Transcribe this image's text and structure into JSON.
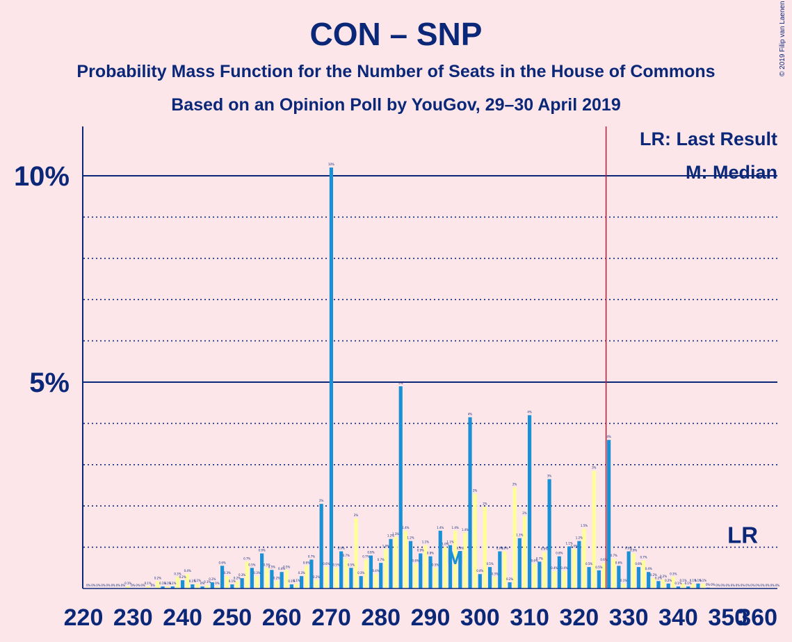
{
  "title": "CON – SNP",
  "subtitle": "Probability Mass Function for the Number of Seats in the House of Commons",
  "subtitle2": "Based on an Opinion Poll by YouGov, 29–30 April 2019",
  "copyright": "© 2019 Filip van Laenen",
  "legend": {
    "last_result": "LR: Last Result",
    "median": "M: Median",
    "lr_label": "LR",
    "median_marker": "M"
  },
  "colors": {
    "background": "#FDE6EA",
    "blue_bar": "#1A90D5",
    "yellow_bar": "#FFFF99",
    "text": "#0B2878",
    "last_result_line": "#C0182F"
  },
  "chart_data": {
    "type": "bar",
    "x_min": 220,
    "x_max": 360,
    "x_ticks": [
      220,
      230,
      240,
      250,
      260,
      270,
      280,
      290,
      300,
      310,
      320,
      330,
      340,
      350,
      360
    ],
    "y_ticks": [
      {
        "value": 5,
        "label": "5%"
      },
      {
        "value": 10,
        "label": "10%"
      }
    ],
    "ylim": [
      0,
      11
    ],
    "grid": "dotted every 1%, solid at 5% and 10%",
    "last_result_seat": 326,
    "median_seat": 295,
    "lr_label_seat": 353,
    "lr_label_value": 1.0,
    "blue_series": [
      {
        "x": 222,
        "v": 0.0,
        "l": "0%"
      },
      {
        "x": 224,
        "v": 0.0,
        "l": "0%"
      },
      {
        "x": 226,
        "v": 0.0,
        "l": "0%"
      },
      {
        "x": 228,
        "v": 0.0,
        "l": "0%"
      },
      {
        "x": 230,
        "v": 0.0,
        "l": "0%"
      },
      {
        "x": 232,
        "v": 0.0,
        "l": "0%"
      },
      {
        "x": 234,
        "v": 0.0,
        "l": "0%"
      },
      {
        "x": 236,
        "v": 0.05,
        "l": "0.1%"
      },
      {
        "x": 238,
        "v": 0.05,
        "l": "0.1%"
      },
      {
        "x": 240,
        "v": 0.2,
        "l": "0.2%"
      },
      {
        "x": 242,
        "v": 0.1,
        "l": "0.1%"
      },
      {
        "x": 244,
        "v": 0.05,
        "l": "0%"
      },
      {
        "x": 246,
        "v": 0.15,
        "l": "0.2%"
      },
      {
        "x": 248,
        "v": 0.55,
        "l": "0.6%"
      },
      {
        "x": 250,
        "v": 0.1,
        "l": "0.1%"
      },
      {
        "x": 252,
        "v": 0.25,
        "l": "0.3%"
      },
      {
        "x": 254,
        "v": 0.5,
        "l": "0.5%"
      },
      {
        "x": 256,
        "v": 0.85,
        "l": "0.9%"
      },
      {
        "x": 258,
        "v": 0.45,
        "l": "0.5%"
      },
      {
        "x": 260,
        "v": 0.4,
        "l": "0.4%"
      },
      {
        "x": 262,
        "v": 0.1,
        "l": "0.1%"
      },
      {
        "x": 264,
        "v": 0.3,
        "l": "0.3%"
      },
      {
        "x": 266,
        "v": 0.7,
        "l": "0.7%"
      },
      {
        "x": 268,
        "v": 2.05,
        "l": "2%"
      },
      {
        "x": 270,
        "v": 10.2,
        "l": "10%"
      },
      {
        "x": 272,
        "v": 0.9,
        "l": "0.9%"
      },
      {
        "x": 274,
        "v": 0.5,
        "l": "0.5%"
      },
      {
        "x": 276,
        "v": 0.3,
        "l": "0.3%"
      },
      {
        "x": 278,
        "v": 0.8,
        "l": "0.8%"
      },
      {
        "x": 280,
        "v": 0.62,
        "l": "0.7%"
      },
      {
        "x": 282,
        "v": 1.2,
        "l": "1.2%"
      },
      {
        "x": 284,
        "v": 4.9,
        "l": "5%"
      },
      {
        "x": 286,
        "v": 1.15,
        "l": "1.2%"
      },
      {
        "x": 288,
        "v": 0.85,
        "l": "0.9%"
      },
      {
        "x": 290,
        "v": 0.78,
        "l": "0.8%"
      },
      {
        "x": 292,
        "v": 1.4,
        "l": "1.4%"
      },
      {
        "x": 294,
        "v": 1.05,
        "l": "1.1%"
      },
      {
        "x": 296,
        "v": 0.9,
        "l": "0.9%"
      },
      {
        "x": 298,
        "v": 4.15,
        "l": "4%"
      },
      {
        "x": 300,
        "v": 0.35,
        "l": "0.4%"
      },
      {
        "x": 302,
        "v": 0.52,
        "l": "0.5%"
      },
      {
        "x": 304,
        "v": 0.9,
        "l": "0.9%"
      },
      {
        "x": 306,
        "v": 0.15,
        "l": "0.2%"
      },
      {
        "x": 308,
        "v": 1.22,
        "l": "1.3%"
      },
      {
        "x": 310,
        "v": 4.2,
        "l": "4%"
      },
      {
        "x": 312,
        "v": 0.65,
        "l": "0.7%"
      },
      {
        "x": 314,
        "v": 2.65,
        "l": "3%"
      },
      {
        "x": 316,
        "v": 0.78,
        "l": "0.8%"
      },
      {
        "x": 318,
        "v": 1.02,
        "l": "1.1%"
      },
      {
        "x": 320,
        "v": 1.15,
        "l": "1.2%"
      },
      {
        "x": 322,
        "v": 0.52,
        "l": "0.5%"
      },
      {
        "x": 324,
        "v": 0.44,
        "l": "0.5%"
      },
      {
        "x": 326,
        "v": 3.6,
        "l": "4%"
      },
      {
        "x": 328,
        "v": 0.55,
        "l": "0.6%"
      },
      {
        "x": 330,
        "v": 0.9,
        "l": "0.9%"
      },
      {
        "x": 332,
        "v": 0.52,
        "l": "0.6%"
      },
      {
        "x": 334,
        "v": 0.4,
        "l": "0.4%"
      },
      {
        "x": 336,
        "v": 0.18,
        "l": "0.2%"
      },
      {
        "x": 338,
        "v": 0.12,
        "l": "0.2%"
      },
      {
        "x": 340,
        "v": 0.05,
        "l": "0.1%"
      },
      {
        "x": 342,
        "v": 0.05,
        "l": "0.1%"
      },
      {
        "x": 344,
        "v": 0.12,
        "l": "0.1%"
      },
      {
        "x": 346,
        "v": 0.02,
        "l": "0%"
      },
      {
        "x": 348,
        "v": 0.0,
        "l": "0%"
      },
      {
        "x": 350,
        "v": 0.0,
        "l": "0%"
      },
      {
        "x": 352,
        "v": 0.0,
        "l": "0%"
      },
      {
        "x": 354,
        "v": 0.0,
        "l": "0%"
      },
      {
        "x": 356,
        "v": 0.0,
        "l": "0%"
      },
      {
        "x": 358,
        "v": 0.0,
        "l": "0%"
      },
      {
        "x": 360,
        "v": 0.0,
        "l": "0%"
      }
    ],
    "yellow_series": [
      {
        "x": 221,
        "v": 0.0,
        "l": "0%"
      },
      {
        "x": 223,
        "v": 0.0,
        "l": "0%"
      },
      {
        "x": 225,
        "v": 0.0,
        "l": "0%"
      },
      {
        "x": 227,
        "v": 0.0,
        "l": "0%"
      },
      {
        "x": 229,
        "v": 0.05,
        "l": "0.1%"
      },
      {
        "x": 231,
        "v": 0.0,
        "l": "0%"
      },
      {
        "x": 233,
        "v": 0.05,
        "l": "0.1%"
      },
      {
        "x": 235,
        "v": 0.18,
        "l": "0.2%"
      },
      {
        "x": 237,
        "v": 0.05,
        "l": "0.1%"
      },
      {
        "x": 239,
        "v": 0.28,
        "l": "0.3%"
      },
      {
        "x": 241,
        "v": 0.35,
        "l": "0.4%"
      },
      {
        "x": 243,
        "v": 0.12,
        "l": "0.1%"
      },
      {
        "x": 245,
        "v": 0.08,
        "l": "0.1%"
      },
      {
        "x": 247,
        "v": 0.05,
        "l": "0%"
      },
      {
        "x": 249,
        "v": 0.3,
        "l": "0.3%"
      },
      {
        "x": 251,
        "v": 0.18,
        "l": "0.2%"
      },
      {
        "x": 253,
        "v": 0.65,
        "l": "0.7%"
      },
      {
        "x": 255,
        "v": 0.3,
        "l": "0.3%"
      },
      {
        "x": 257,
        "v": 0.5,
        "l": "0.5%"
      },
      {
        "x": 259,
        "v": 0.18,
        "l": "0.2%"
      },
      {
        "x": 261,
        "v": 0.45,
        "l": "0.5%"
      },
      {
        "x": 263,
        "v": 0.12,
        "l": "0.1%"
      },
      {
        "x": 265,
        "v": 0.55,
        "l": "0.6%"
      },
      {
        "x": 267,
        "v": 0.2,
        "l": "0.2%"
      },
      {
        "x": 269,
        "v": 0.52,
        "l": "0.6%"
      },
      {
        "x": 271,
        "v": 0.5,
        "l": "0.5%"
      },
      {
        "x": 273,
        "v": 0.72,
        "l": "0.7%"
      },
      {
        "x": 275,
        "v": 1.7,
        "l": "2%"
      },
      {
        "x": 277,
        "v": 0.7,
        "l": "0.7%"
      },
      {
        "x": 279,
        "v": 0.35,
        "l": "0.4%"
      },
      {
        "x": 281,
        "v": 0.95,
        "l": "1.0%"
      },
      {
        "x": 283,
        "v": 1.25,
        "l": "1.3%"
      },
      {
        "x": 285,
        "v": 1.4,
        "l": "1.4%"
      },
      {
        "x": 287,
        "v": 0.6,
        "l": "0.6%"
      },
      {
        "x": 289,
        "v": 1.05,
        "l": "1.1%"
      },
      {
        "x": 291,
        "v": 0.5,
        "l": "0.5%"
      },
      {
        "x": 293,
        "v": 1.0,
        "l": "1.0%"
      },
      {
        "x": 295,
        "v": 1.4,
        "l": "1.4%"
      },
      {
        "x": 297,
        "v": 1.35,
        "l": "1.4%"
      },
      {
        "x": 299,
        "v": 2.3,
        "l": "2%"
      },
      {
        "x": 301,
        "v": 1.98,
        "l": "2%"
      },
      {
        "x": 303,
        "v": 0.28,
        "l": "0.3%"
      },
      {
        "x": 305,
        "v": 0.9,
        "l": "0.9%"
      },
      {
        "x": 307,
        "v": 2.45,
        "l": "2%"
      },
      {
        "x": 309,
        "v": 1.75,
        "l": "2%"
      },
      {
        "x": 311,
        "v": 0.6,
        "l": "0.6%"
      },
      {
        "x": 313,
        "v": 0.88,
        "l": "0.9%"
      },
      {
        "x": 315,
        "v": 0.42,
        "l": "0.4%"
      },
      {
        "x": 317,
        "v": 0.42,
        "l": "0.4%"
      },
      {
        "x": 319,
        "v": 0.95,
        "l": "1.0%"
      },
      {
        "x": 321,
        "v": 1.45,
        "l": "1.5%"
      },
      {
        "x": 323,
        "v": 2.85,
        "l": "3%"
      },
      {
        "x": 325,
        "v": 0.62,
        "l": "0.6%"
      },
      {
        "x": 327,
        "v": 0.72,
        "l": "0.7%"
      },
      {
        "x": 329,
        "v": 0.12,
        "l": "0.1%"
      },
      {
        "x": 331,
        "v": 0.85,
        "l": "0.9%"
      },
      {
        "x": 333,
        "v": 0.68,
        "l": "0.7%"
      },
      {
        "x": 335,
        "v": 0.25,
        "l": "0.2%"
      },
      {
        "x": 337,
        "v": 0.22,
        "l": "0.2%"
      },
      {
        "x": 339,
        "v": 0.28,
        "l": "0.3%"
      },
      {
        "x": 341,
        "v": 0.12,
        "l": "0.1%"
      },
      {
        "x": 343,
        "v": 0.12,
        "l": "0.1%"
      },
      {
        "x": 345,
        "v": 0.12,
        "l": "0.1%"
      },
      {
        "x": 347,
        "v": 0.02,
        "l": "0%"
      },
      {
        "x": 349,
        "v": 0.0,
        "l": "0%"
      },
      {
        "x": 351,
        "v": 0.0,
        "l": "0%"
      },
      {
        "x": 353,
        "v": 0.0,
        "l": "0%"
      },
      {
        "x": 355,
        "v": 0.0,
        "l": "0%"
      },
      {
        "x": 357,
        "v": 0.0,
        "l": "0%"
      },
      {
        "x": 359,
        "v": 0.0,
        "l": "0%"
      }
    ]
  }
}
